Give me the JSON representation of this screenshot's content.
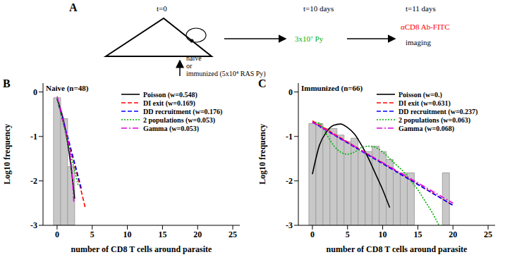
{
  "diagram": {
    "panel_label": "A",
    "start": {
      "time": "t=0",
      "groups": [
        "naive",
        "or",
        "immunized (5x10⁴ RAS Py)"
      ]
    },
    "challenge": {
      "time": "t=10 days",
      "label": "3x10⁷ Py",
      "color": "#00b000"
    },
    "readout": {
      "time": "t=11 days",
      "label": "αCD8 Ab-FITC",
      "color": "#ff0000",
      "step": "imaging"
    }
  },
  "chart_data": [
    {
      "type": "histogram",
      "panel_label": "B",
      "title": "Naive (n=48)",
      "x_label": "number of CD8 T cells around parasite",
      "y_label": "Log10 frequency",
      "bins": [
        -0.5,
        0.5,
        1.5,
        2.5
      ],
      "values": [
        -0.13,
        -0.6,
        -1.68
      ],
      "color": "#c8c8c8",
      "xlim": [
        -2,
        26
      ],
      "xticks": [
        0,
        5,
        10,
        15,
        20,
        25
      ],
      "ylim": [
        -3,
        0.2
      ],
      "yticks": [
        -3,
        -2,
        -1,
        0
      ],
      "legend": "upper right",
      "series": [
        {
          "name": "Poisson (w=0.548)",
          "color": "#000000",
          "line_style": "solid",
          "x": [
            0,
            1,
            2,
            2.5
          ],
          "values": [
            -0.15,
            -0.7,
            -1.7,
            -2.4
          ]
        },
        {
          "name": "DI exit (w=0.169)",
          "color": "#ff0000",
          "line_style": "dashed",
          "x": [
            0,
            1,
            2,
            3,
            4
          ],
          "values": [
            -0.15,
            -0.75,
            -1.35,
            -1.95,
            -2.6
          ]
        },
        {
          "name": "DD recruitment (w=0.176)",
          "color": "#0000ff",
          "line_style": "dashed",
          "x": [
            0,
            1,
            2,
            3,
            3.5
          ],
          "values": [
            -0.15,
            -0.72,
            -1.3,
            -1.9,
            -2.2
          ]
        },
        {
          "name": "2 populations (w=0.053)",
          "color": "#00b000",
          "line_style": "dotted",
          "x": [
            0,
            1,
            2,
            3
          ],
          "values": [
            -0.15,
            -0.8,
            -1.45,
            -2.1
          ]
        },
        {
          "name": "Gamma (w=0.053)",
          "color": "#e000e0",
          "line_style": "dashdot",
          "x": [
            0,
            1,
            2,
            2.4
          ],
          "values": [
            -0.1,
            -0.75,
            -1.6,
            -2.5
          ]
        }
      ]
    },
    {
      "type": "histogram",
      "panel_label": "C",
      "title": "Immunized (n=66)",
      "x_label": "number of CD8 T cells around parasite",
      "y_label": "Log10 frequency",
      "bins": [
        -0.5,
        0.5,
        1.5,
        2.5,
        3.5,
        4.5,
        5.5,
        6.5,
        7.5,
        8.5,
        9.5,
        10.5,
        11.5,
        12.5,
        13.5,
        14.5,
        15.5,
        16.5,
        17.5,
        18.5,
        19.5
      ],
      "values": [
        -0.71,
        -0.71,
        -0.82,
        -0.82,
        -0.97,
        -1.12,
        -1.04,
        -1.34,
        -1.34,
        -1.22,
        -1.34,
        -1.52,
        -1.82,
        -1.82,
        -1.82,
        null,
        null,
        null,
        null,
        -1.82
      ],
      "color": "#c8c8c8",
      "xlim": [
        -2,
        26
      ],
      "xticks": [
        0,
        5,
        10,
        15,
        20,
        25
      ],
      "ylim": [
        -3,
        0.2
      ],
      "yticks": [
        -3,
        -2,
        -1,
        0
      ],
      "legend": "upper right",
      "series": [
        {
          "name": "Poisson (w=0.)",
          "color": "#000000",
          "line_style": "solid",
          "x": [
            0,
            1,
            2,
            3,
            4,
            5,
            6,
            7,
            8,
            9,
            10,
            11
          ],
          "values": [
            -1.85,
            -1.2,
            -0.9,
            -0.75,
            -0.72,
            -0.8,
            -0.95,
            -1.2,
            -1.5,
            -1.85,
            -2.2,
            -2.6
          ]
        },
        {
          "name": "DI exit (w=0.631)",
          "color": "#ff0000",
          "line_style": "dashed",
          "x": [
            0,
            20
          ],
          "values": [
            -0.65,
            -2.55
          ]
        },
        {
          "name": "DD recruitment (w=0.237)",
          "color": "#0000ff",
          "line_style": "dashed",
          "x": [
            0,
            20
          ],
          "values": [
            -0.68,
            -2.55
          ]
        },
        {
          "name": "2 populations (w=0.063)",
          "color": "#00b000",
          "line_style": "dotted",
          "x": [
            0,
            1,
            2,
            3,
            4,
            5,
            6,
            7,
            8,
            9,
            10,
            11,
            12,
            13,
            14,
            15,
            16,
            17,
            18
          ],
          "values": [
            -0.68,
            -0.7,
            -0.95,
            -1.2,
            -1.35,
            -1.4,
            -1.35,
            -1.25,
            -1.22,
            -1.25,
            -1.35,
            -1.5,
            -1.65,
            -1.8,
            -2.0,
            -2.2,
            -2.45,
            -2.7,
            -3.0
          ]
        },
        {
          "name": "Gamma (w=0.068)",
          "color": "#e000e0",
          "line_style": "dashdot",
          "x": [
            0,
            20
          ],
          "values": [
            -0.68,
            -2.5
          ]
        }
      ]
    }
  ]
}
